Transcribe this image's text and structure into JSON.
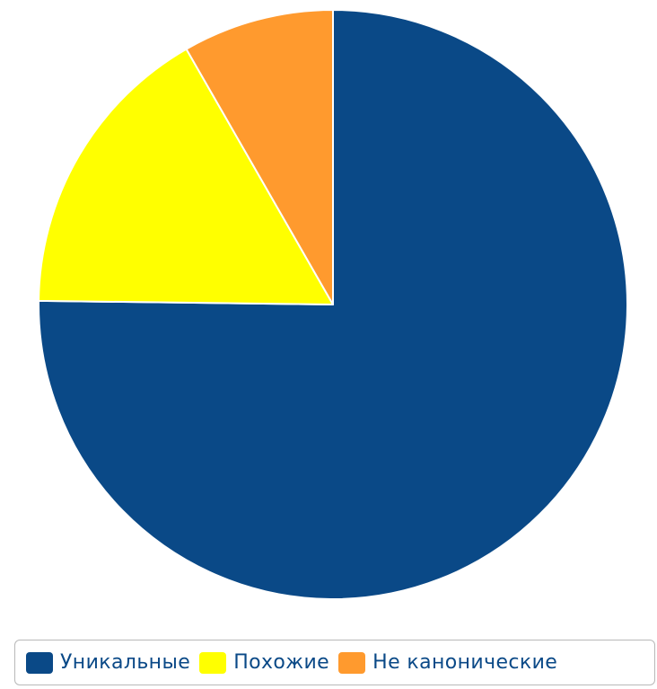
{
  "chart_data": {
    "type": "pie",
    "title": "",
    "start_angle_deg": 0,
    "direction": "clockwise",
    "slices": [
      {
        "name": "Уникальные",
        "value": 75.2,
        "color": "#0a4987"
      },
      {
        "name": "Похожие",
        "value": 16.5,
        "color": "#ffff00"
      },
      {
        "name": "Не канонические",
        "value": 8.3,
        "color": "#ff9a2e"
      }
    ],
    "legend_position": "bottom",
    "slice_border_color": "#ffffff"
  }
}
